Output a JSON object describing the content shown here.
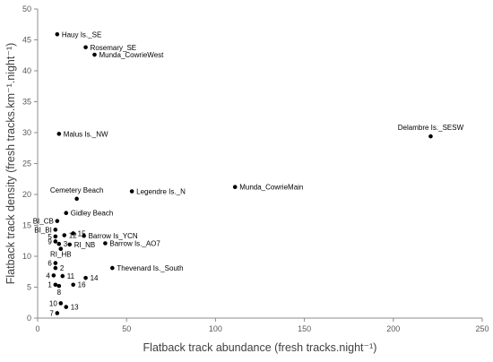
{
  "chart_data": {
    "type": "scatter",
    "title": "",
    "xlabel": "Flatback track abundance (fresh tracks.night⁻¹)",
    "ylabel": "Flatback track density (fresh tracks.km⁻¹.night⁻¹)",
    "xlim": [
      0,
      250
    ],
    "ylim": [
      0,
      50
    ],
    "xticks": [
      "0",
      "50",
      "100",
      "150",
      "200",
      "250"
    ],
    "yticks": [
      "0",
      "5",
      "10",
      "15",
      "20",
      "25",
      "30",
      "35",
      "40",
      "45",
      "50"
    ],
    "grid": false,
    "legend": "none",
    "marker_color": "#000000",
    "points": [
      {
        "label": "Hauy Is._SE",
        "x": 11,
        "y": 45.9,
        "anchor": "start"
      },
      {
        "label": "Rosemary_SE",
        "x": 27,
        "y": 43.8,
        "anchor": "start"
      },
      {
        "label": "Munda_CowrieWest",
        "x": 32,
        "y": 42.6,
        "anchor": "start"
      },
      {
        "label": "Delambre Is._SESW",
        "x": 221,
        "y": 29.4,
        "anchor": "middle"
      },
      {
        "label": "Malus Is._NW",
        "x": 12,
        "y": 29.8,
        "anchor": "start"
      },
      {
        "label": "Munda_CowrieMain",
        "x": 111,
        "y": 21.2,
        "anchor": "start"
      },
      {
        "label": "Legendre Is._N",
        "x": 53,
        "y": 20.5,
        "anchor": "start"
      },
      {
        "label": "Cemetery Beach",
        "x": 22,
        "y": 19.3,
        "anchor": "middle"
      },
      {
        "label": "Gidley Beach",
        "x": 16,
        "y": 17.0,
        "anchor": "start"
      },
      {
        "label": "BI_CB",
        "x": 11,
        "y": 15.7,
        "anchor": "end"
      },
      {
        "label": "BI_BI",
        "x": 10,
        "y": 14.3,
        "anchor": "end"
      },
      {
        "label": "5",
        "x": 10,
        "y": 13.2,
        "anchor": "end"
      },
      {
        "label": "9",
        "x": 10,
        "y": 12.4,
        "anchor": "end"
      },
      {
        "label": "3",
        "x": 12,
        "y": 12.0,
        "anchor": "start"
      },
      {
        "label": "12",
        "x": 15,
        "y": 13.4,
        "anchor": "start"
      },
      {
        "label": "15",
        "x": 20,
        "y": 13.7,
        "anchor": "start"
      },
      {
        "label": "Barrow Is_YCN",
        "x": 26,
        "y": 13.3,
        "anchor": "start"
      },
      {
        "label": "RI_NB",
        "x": 18,
        "y": 11.9,
        "anchor": "start"
      },
      {
        "label": "Barrow Is._AO7",
        "x": 38,
        "y": 12.1,
        "anchor": "start"
      },
      {
        "label": "RI_HB",
        "x": 13,
        "y": 11.2,
        "anchor": "middle"
      },
      {
        "label": "6",
        "x": 10,
        "y": 8.9,
        "anchor": "end"
      },
      {
        "label": "2",
        "x": 10,
        "y": 8.1,
        "anchor": "start"
      },
      {
        "label": "Thevenard Is._South",
        "x": 42,
        "y": 8.1,
        "anchor": "start"
      },
      {
        "label": "4",
        "x": 9,
        "y": 6.9,
        "anchor": "end"
      },
      {
        "label": "11",
        "x": 14,
        "y": 6.8,
        "anchor": "start"
      },
      {
        "label": "14",
        "x": 27,
        "y": 6.5,
        "anchor": "start"
      },
      {
        "label": "1",
        "x": 10,
        "y": 5.4,
        "anchor": "end"
      },
      {
        "label": "8",
        "x": 12,
        "y": 5.2,
        "anchor": "middle"
      },
      {
        "label": "16",
        "x": 20,
        "y": 5.4,
        "anchor": "start"
      },
      {
        "label": "10",
        "x": 13,
        "y": 2.4,
        "anchor": "end"
      },
      {
        "label": "13",
        "x": 16,
        "y": 1.8,
        "anchor": "start"
      },
      {
        "label": "7",
        "x": 11,
        "y": 0.8,
        "anchor": "end"
      }
    ]
  }
}
